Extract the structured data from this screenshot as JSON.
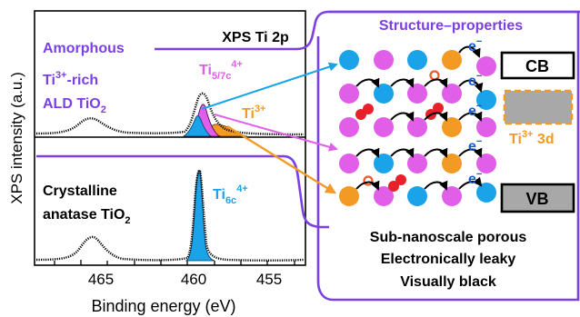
{
  "axes": {
    "ylabel": "XPS intensity (a.u.)",
    "xlabel": "Binding energy (eV)",
    "xticks": [
      "465",
      "460",
      "455"
    ],
    "header": "XPS Ti 2p"
  },
  "top_panel": {
    "title": "Amorphous",
    "desc_ti": "Ti",
    "desc_ti_sup": "3+",
    "desc_rich": "-rich",
    "desc_ald": "ALD TiO",
    "desc_ald_sub": "2",
    "peak_main": "Ti",
    "peak_main_sub": "5/7c",
    "peak_main_sup": "4+",
    "peak_ti3": "Ti",
    "peak_ti3_sup": "3+"
  },
  "bottom_panel": {
    "line1": "Crystalline",
    "line2": "anatase TiO",
    "line2_sub": "2",
    "peak": "Ti",
    "peak_sub": "6c",
    "peak_sup": "4+"
  },
  "right_panel": {
    "title": "Structure–properties",
    "cb": "CB",
    "vb": "VB",
    "electron": "e",
    "electron_sup": "−",
    "defect": "Ti",
    "defect_sup": "3+",
    "defect_level": " 3d",
    "bottom_lines": [
      "Sub-nanoscale porous",
      "Electronically leaky",
      "Visually black"
    ]
  },
  "colors": {
    "purple": "#7b3fe4",
    "magenta": "#e05ee8",
    "blue": "#1aa3e8",
    "orange": "#f39a24",
    "red": "#e8202a",
    "gray": "#a8a8a8"
  }
}
